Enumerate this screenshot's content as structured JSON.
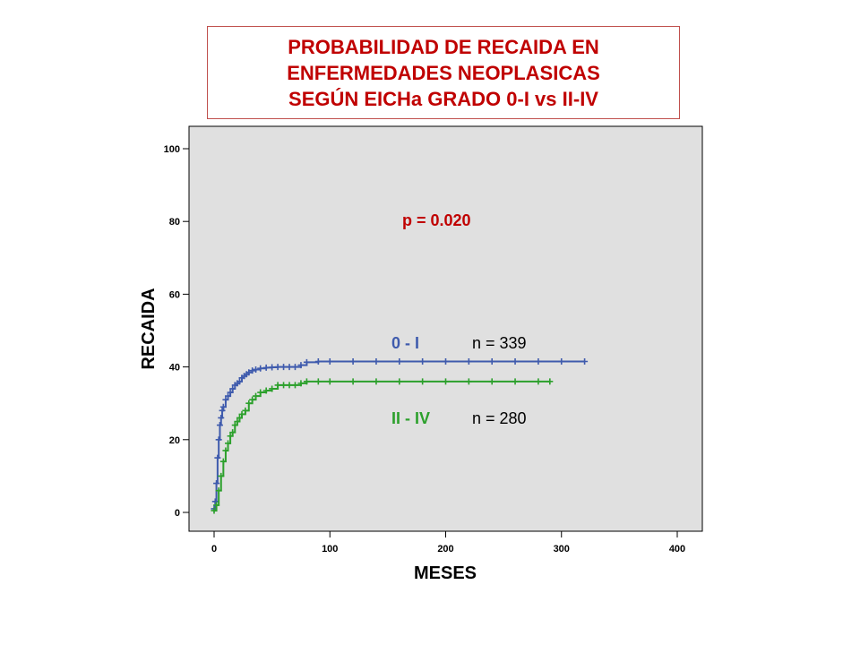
{
  "title": {
    "lines": [
      "PROBABILIDAD DE RECAIDA EN",
      "ENFERMEDADES NEOPLASICAS",
      "SEGÚN EICHa GRADO 0-I vs II-IV"
    ],
    "color": "#c00000"
  },
  "chart_data": {
    "type": "line",
    "xlabel": "MESES",
    "ylabel": "RECAIDA",
    "xlim": [
      0,
      400
    ],
    "ylim": [
      0,
      100
    ],
    "xticks": [
      0,
      100,
      200,
      300,
      400
    ],
    "yticks": [
      0,
      20,
      40,
      60,
      80,
      100
    ],
    "grid": false,
    "plot_background": "#e0e0e0",
    "annotations": [
      {
        "text": "p = 0.020",
        "color": "#c00000"
      },
      {
        "text": "n = 339",
        "color": "#000000"
      },
      {
        "text": "n = 280",
        "color": "#000000"
      }
    ],
    "series": [
      {
        "name": "0 - I",
        "color": "#3f5bad",
        "x": [
          0,
          1,
          2,
          3,
          4,
          5,
          6,
          7,
          8,
          10,
          12,
          14,
          16,
          18,
          20,
          22,
          24,
          26,
          28,
          30,
          33,
          36,
          40,
          45,
          50,
          55,
          60,
          65,
          70,
          75,
          80,
          90,
          100,
          120,
          140,
          160,
          180,
          200,
          220,
          240,
          260,
          280,
          300,
          320
        ],
        "y": [
          1,
          3,
          8,
          15,
          20,
          24,
          26,
          28,
          29,
          31,
          32,
          33,
          34,
          35,
          35.5,
          36,
          37,
          37.5,
          38,
          38.5,
          39,
          39.3,
          39.6,
          39.8,
          39.9,
          40,
          40,
          40,
          40,
          40.5,
          41.3,
          41.5,
          41.5,
          41.5,
          41.5,
          41.5,
          41.5,
          41.5,
          41.5,
          41.5,
          41.5,
          41.5,
          41.5,
          41.5
        ]
      },
      {
        "name": "II - IV",
        "color": "#2ca02c",
        "x": [
          0,
          2,
          4,
          6,
          8,
          10,
          12,
          14,
          16,
          18,
          20,
          22,
          24,
          27,
          30,
          33,
          36,
          40,
          45,
          50,
          55,
          60,
          65,
          70,
          75,
          80,
          90,
          100,
          120,
          140,
          160,
          180,
          200,
          220,
          240,
          260,
          280,
          290
        ],
        "y": [
          0.5,
          2,
          6,
          10,
          14,
          17,
          19,
          21,
          22,
          24,
          25,
          26,
          27,
          28,
          30,
          31,
          32,
          33,
          33.5,
          34,
          35,
          35,
          35,
          35,
          35.5,
          36,
          36,
          36,
          36,
          36,
          36,
          36,
          36,
          36,
          36,
          36,
          36,
          36
        ]
      }
    ]
  }
}
